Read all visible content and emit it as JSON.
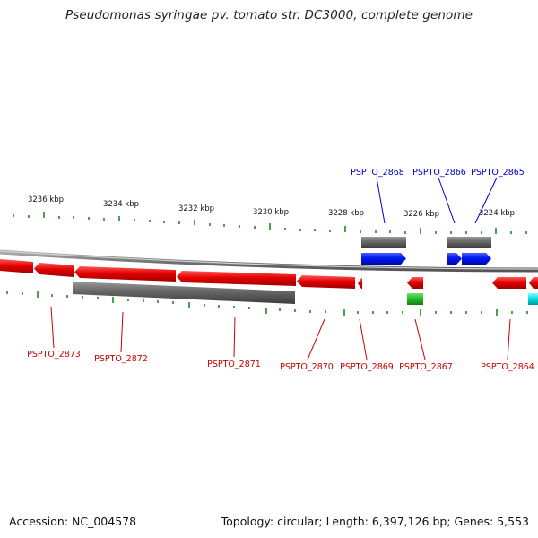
{
  "title": "Pseudomonas syringae pv. tomato str. DC3000, complete genome",
  "axis_labels": [
    "3236 kbp",
    "3234 kbp",
    "3232 kbp",
    "3230 kbp",
    "3228 kbp",
    "3226 kbp",
    "3224 kbp"
  ],
  "genes_top": [
    {
      "label": "PSPTO_2868",
      "color": "#0000cc"
    },
    {
      "label": "PSPTO_2866",
      "color": "#0000cc"
    },
    {
      "label": "PSPTO_2865",
      "color": "#0000cc"
    }
  ],
  "genes_bottom": [
    {
      "label": "PSPTO_2873",
      "color": "#cc0000"
    },
    {
      "label": "PSPTO_2872",
      "color": "#cc0000"
    },
    {
      "label": "PSPTO_2871",
      "color": "#cc0000"
    },
    {
      "label": "PSPTO_2870",
      "color": "#cc0000"
    },
    {
      "label": "PSPTO_2869",
      "color": "#cc0000"
    },
    {
      "label": "PSPTO_2867",
      "color": "#cc0000"
    },
    {
      "label": "PSPTO_2864",
      "color": "#cc0000"
    }
  ],
  "colors": {
    "forward_gene": "#0022ee",
    "reverse_gene": "#ee0000",
    "rna_green": "#22bb22",
    "cyan_feature": "#00dddd",
    "gray_feature": "#666666",
    "tick": "#228822"
  },
  "footer": {
    "accession": "Accession: NC_004578",
    "summary": "Topology: circular; Length: 6,397,126 bp; Genes: 5,553"
  }
}
